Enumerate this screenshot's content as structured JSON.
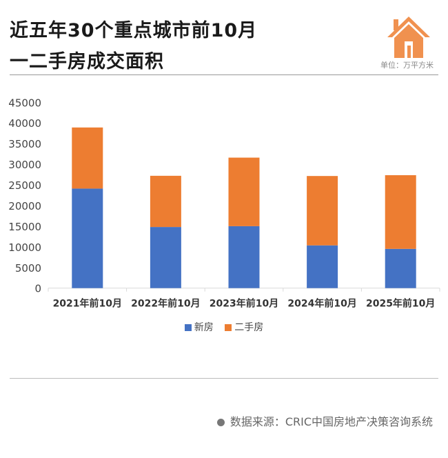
{
  "title_line1": "近五年30个重点城市前10月",
  "title_line2": "一二手房成交面积",
  "unit_label": "单位：万平方米",
  "icon": "house-icon",
  "source": "数据来源：CRIC中国房地产决策咨询系统",
  "chart_data": {
    "type": "bar",
    "stacked": true,
    "categories": [
      "2021年前10月",
      "2022年前10月",
      "2023年前10月",
      "2024年前10月",
      "2025年前10月"
    ],
    "series": [
      {
        "name": "新房",
        "color": "#4472C4",
        "values": [
          24100,
          14800,
          15000,
          10350,
          9500
        ]
      },
      {
        "name": "二手房",
        "color": "#ED7D31",
        "values": [
          14800,
          12400,
          16600,
          16800,
          17850
        ]
      }
    ],
    "ylim": [
      0,
      45000
    ],
    "yticks": [
      "0",
      "5000",
      "10000",
      "15000",
      "20000",
      "25000",
      "30000",
      "35000",
      "40000",
      "45000"
    ],
    "grid": false,
    "legend": "bottom"
  }
}
